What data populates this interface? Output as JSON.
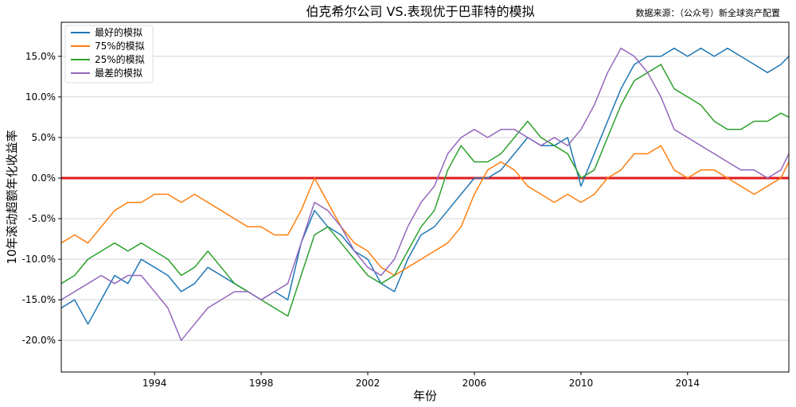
{
  "chart_data": {
    "type": "line",
    "title": "伯克希尔公司 VS.表现优于巴菲特的模拟",
    "source": "数据来源：（公众号）新全球资产配置",
    "xlabel": "年份",
    "ylabel": "10年滚动超额年化收益率",
    "xlim": [
      1990.5,
      2017.8
    ],
    "ylim": [
      -23.9,
      19.2
    ],
    "x_ticks": [
      1994,
      1998,
      2002,
      2006,
      2010,
      2014
    ],
    "y_ticks": [
      {
        "value": 15,
        "label": "15.0%"
      },
      {
        "value": 10,
        "label": "10.0%"
      },
      {
        "value": 5,
        "label": "5.0%"
      },
      {
        "value": 0,
        "label": "0.0%"
      },
      {
        "value": -5,
        "label": "-5.0%"
      },
      {
        "value": -10,
        "label": "-10.0%"
      },
      {
        "value": -15,
        "label": "-15.0%"
      },
      {
        "value": -20,
        "label": "-20.0%"
      }
    ],
    "grid": "horizontal",
    "legend_position": "top-left",
    "reference_line": {
      "y": 0,
      "color": "#e31a1c"
    },
    "series": [
      {
        "name": "最好的模拟",
        "color": "#1f77b4",
        "points": [
          [
            1990.5,
            -16
          ],
          [
            1991,
            -15
          ],
          [
            1991.5,
            -18
          ],
          [
            1992,
            -15
          ],
          [
            1992.5,
            -12
          ],
          [
            1993,
            -13
          ],
          [
            1993.5,
            -10
          ],
          [
            1994,
            -11
          ],
          [
            1994.5,
            -12
          ],
          [
            1995,
            -14
          ],
          [
            1995.5,
            -13
          ],
          [
            1996,
            -11
          ],
          [
            1996.5,
            -12
          ],
          [
            1997,
            -13
          ],
          [
            1997.5,
            -14
          ],
          [
            1998,
            -15
          ],
          [
            1998.5,
            -14
          ],
          [
            1999,
            -15
          ],
          [
            1999.5,
            -8
          ],
          [
            2000,
            -4
          ],
          [
            2000.5,
            -6
          ],
          [
            2001,
            -7
          ],
          [
            2001.5,
            -9
          ],
          [
            2002,
            -10
          ],
          [
            2002.5,
            -13
          ],
          [
            2003,
            -14
          ],
          [
            2003.5,
            -10
          ],
          [
            2004,
            -7
          ],
          [
            2004.5,
            -6
          ],
          [
            2005,
            -4
          ],
          [
            2005.5,
            -2
          ],
          [
            2006,
            0
          ],
          [
            2006.5,
            0
          ],
          [
            2007,
            1
          ],
          [
            2007.5,
            3
          ],
          [
            2008,
            5
          ],
          [
            2008.5,
            4
          ],
          [
            2009,
            4
          ],
          [
            2009.5,
            5
          ],
          [
            2010,
            -1
          ],
          [
            2010.5,
            3
          ],
          [
            2011,
            7
          ],
          [
            2011.5,
            11
          ],
          [
            2012,
            14
          ],
          [
            2012.5,
            15
          ],
          [
            2013,
            15
          ],
          [
            2013.5,
            16
          ],
          [
            2014,
            15
          ],
          [
            2014.5,
            16
          ],
          [
            2015,
            15
          ],
          [
            2015.5,
            16
          ],
          [
            2016,
            15
          ],
          [
            2016.5,
            14
          ],
          [
            2017,
            13
          ],
          [
            2017.5,
            14
          ],
          [
            2017.8,
            15
          ]
        ]
      },
      {
        "name": "75%的模拟",
        "color": "#ff7f0e",
        "points": [
          [
            1990.5,
            -8
          ],
          [
            1991,
            -7
          ],
          [
            1991.5,
            -8
          ],
          [
            1992,
            -6
          ],
          [
            1992.5,
            -4
          ],
          [
            1993,
            -3
          ],
          [
            1993.5,
            -3
          ],
          [
            1994,
            -2
          ],
          [
            1994.5,
            -2
          ],
          [
            1995,
            -3
          ],
          [
            1995.5,
            -2
          ],
          [
            1996,
            -3
          ],
          [
            1996.5,
            -4
          ],
          [
            1997,
            -5
          ],
          [
            1997.5,
            -6
          ],
          [
            1998,
            -6
          ],
          [
            1998.5,
            -7
          ],
          [
            1999,
            -7
          ],
          [
            1999.5,
            -4
          ],
          [
            2000,
            0
          ],
          [
            2000.5,
            -3
          ],
          [
            2001,
            -6
          ],
          [
            2001.5,
            -8
          ],
          [
            2002,
            -9
          ],
          [
            2002.5,
            -11
          ],
          [
            2003,
            -12
          ],
          [
            2003.5,
            -11
          ],
          [
            2004,
            -10
          ],
          [
            2004.5,
            -9
          ],
          [
            2005,
            -8
          ],
          [
            2005.5,
            -6
          ],
          [
            2006,
            -2
          ],
          [
            2006.5,
            1
          ],
          [
            2007,
            2
          ],
          [
            2007.5,
            1
          ],
          [
            2008,
            -1
          ],
          [
            2008.5,
            -2
          ],
          [
            2009,
            -3
          ],
          [
            2009.5,
            -2
          ],
          [
            2010,
            -3
          ],
          [
            2010.5,
            -2
          ],
          [
            2011,
            0
          ],
          [
            2011.5,
            1
          ],
          [
            2012,
            3
          ],
          [
            2012.5,
            3
          ],
          [
            2013,
            4
          ],
          [
            2013.5,
            1
          ],
          [
            2014,
            0
          ],
          [
            2014.5,
            1
          ],
          [
            2015,
            1
          ],
          [
            2015.5,
            0
          ],
          [
            2016,
            -1
          ],
          [
            2016.5,
            -2
          ],
          [
            2017,
            -1
          ],
          [
            2017.5,
            0
          ],
          [
            2017.8,
            2
          ]
        ]
      },
      {
        "name": "25%的模拟",
        "color": "#2ca02c",
        "points": [
          [
            1990.5,
            -13
          ],
          [
            1991,
            -12
          ],
          [
            1991.5,
            -10
          ],
          [
            1992,
            -9
          ],
          [
            1992.5,
            -8
          ],
          [
            1993,
            -9
          ],
          [
            1993.5,
            -8
          ],
          [
            1994,
            -9
          ],
          [
            1994.5,
            -10
          ],
          [
            1995,
            -12
          ],
          [
            1995.5,
            -11
          ],
          [
            1996,
            -9
          ],
          [
            1996.5,
            -11
          ],
          [
            1997,
            -13
          ],
          [
            1997.5,
            -14
          ],
          [
            1998,
            -15
          ],
          [
            1998.5,
            -16
          ],
          [
            1999,
            -17
          ],
          [
            1999.5,
            -12
          ],
          [
            2000,
            -7
          ],
          [
            2000.5,
            -6
          ],
          [
            2001,
            -8
          ],
          [
            2001.5,
            -10
          ],
          [
            2002,
            -12
          ],
          [
            2002.5,
            -13
          ],
          [
            2003,
            -12
          ],
          [
            2003.5,
            -9
          ],
          [
            2004,
            -6
          ],
          [
            2004.5,
            -4
          ],
          [
            2005,
            1
          ],
          [
            2005.5,
            4
          ],
          [
            2006,
            2
          ],
          [
            2006.5,
            2
          ],
          [
            2007,
            3
          ],
          [
            2007.5,
            5
          ],
          [
            2008,
            7
          ],
          [
            2008.5,
            5
          ],
          [
            2009,
            4
          ],
          [
            2009.5,
            3
          ],
          [
            2010,
            0
          ],
          [
            2010.5,
            1
          ],
          [
            2011,
            5
          ],
          [
            2011.5,
            9
          ],
          [
            2012,
            12
          ],
          [
            2012.5,
            13
          ],
          [
            2013,
            14
          ],
          [
            2013.5,
            11
          ],
          [
            2014,
            10
          ],
          [
            2014.5,
            9
          ],
          [
            2015,
            7
          ],
          [
            2015.5,
            6
          ],
          [
            2016,
            6
          ],
          [
            2016.5,
            7
          ],
          [
            2017,
            7
          ],
          [
            2017.5,
            8
          ],
          [
            2017.8,
            7.5
          ]
        ]
      },
      {
        "name": "最差的模拟",
        "color": "#9467bd",
        "points": [
          [
            1990.5,
            -15
          ],
          [
            1991,
            -14
          ],
          [
            1991.5,
            -13
          ],
          [
            1992,
            -12
          ],
          [
            1992.5,
            -13
          ],
          [
            1993,
            -12
          ],
          [
            1993.5,
            -12
          ],
          [
            1994,
            -14
          ],
          [
            1994.5,
            -16
          ],
          [
            1995,
            -20
          ],
          [
            1995.5,
            -18
          ],
          [
            1996,
            -16
          ],
          [
            1996.5,
            -15
          ],
          [
            1997,
            -14
          ],
          [
            1997.5,
            -14
          ],
          [
            1998,
            -15
          ],
          [
            1998.5,
            -14
          ],
          [
            1999,
            -13
          ],
          [
            1999.5,
            -8
          ],
          [
            2000,
            -3
          ],
          [
            2000.5,
            -4
          ],
          [
            2001,
            -6
          ],
          [
            2001.5,
            -9
          ],
          [
            2002,
            -11
          ],
          [
            2002.5,
            -12
          ],
          [
            2003,
            -10
          ],
          [
            2003.5,
            -6
          ],
          [
            2004,
            -3
          ],
          [
            2004.5,
            -1
          ],
          [
            2005,
            3
          ],
          [
            2005.5,
            5
          ],
          [
            2006,
            6
          ],
          [
            2006.5,
            5
          ],
          [
            2007,
            6
          ],
          [
            2007.5,
            6
          ],
          [
            2008,
            5
          ],
          [
            2008.5,
            4
          ],
          [
            2009,
            5
          ],
          [
            2009.5,
            4
          ],
          [
            2010,
            6
          ],
          [
            2010.5,
            9
          ],
          [
            2011,
            13
          ],
          [
            2011.5,
            16
          ],
          [
            2012,
            15
          ],
          [
            2012.5,
            13
          ],
          [
            2013,
            10
          ],
          [
            2013.5,
            6
          ],
          [
            2014,
            5
          ],
          [
            2014.5,
            4
          ],
          [
            2015,
            3
          ],
          [
            2015.5,
            2
          ],
          [
            2016,
            1
          ],
          [
            2016.5,
            1
          ],
          [
            2017,
            0
          ],
          [
            2017.5,
            1
          ],
          [
            2017.8,
            3
          ]
        ]
      }
    ]
  }
}
